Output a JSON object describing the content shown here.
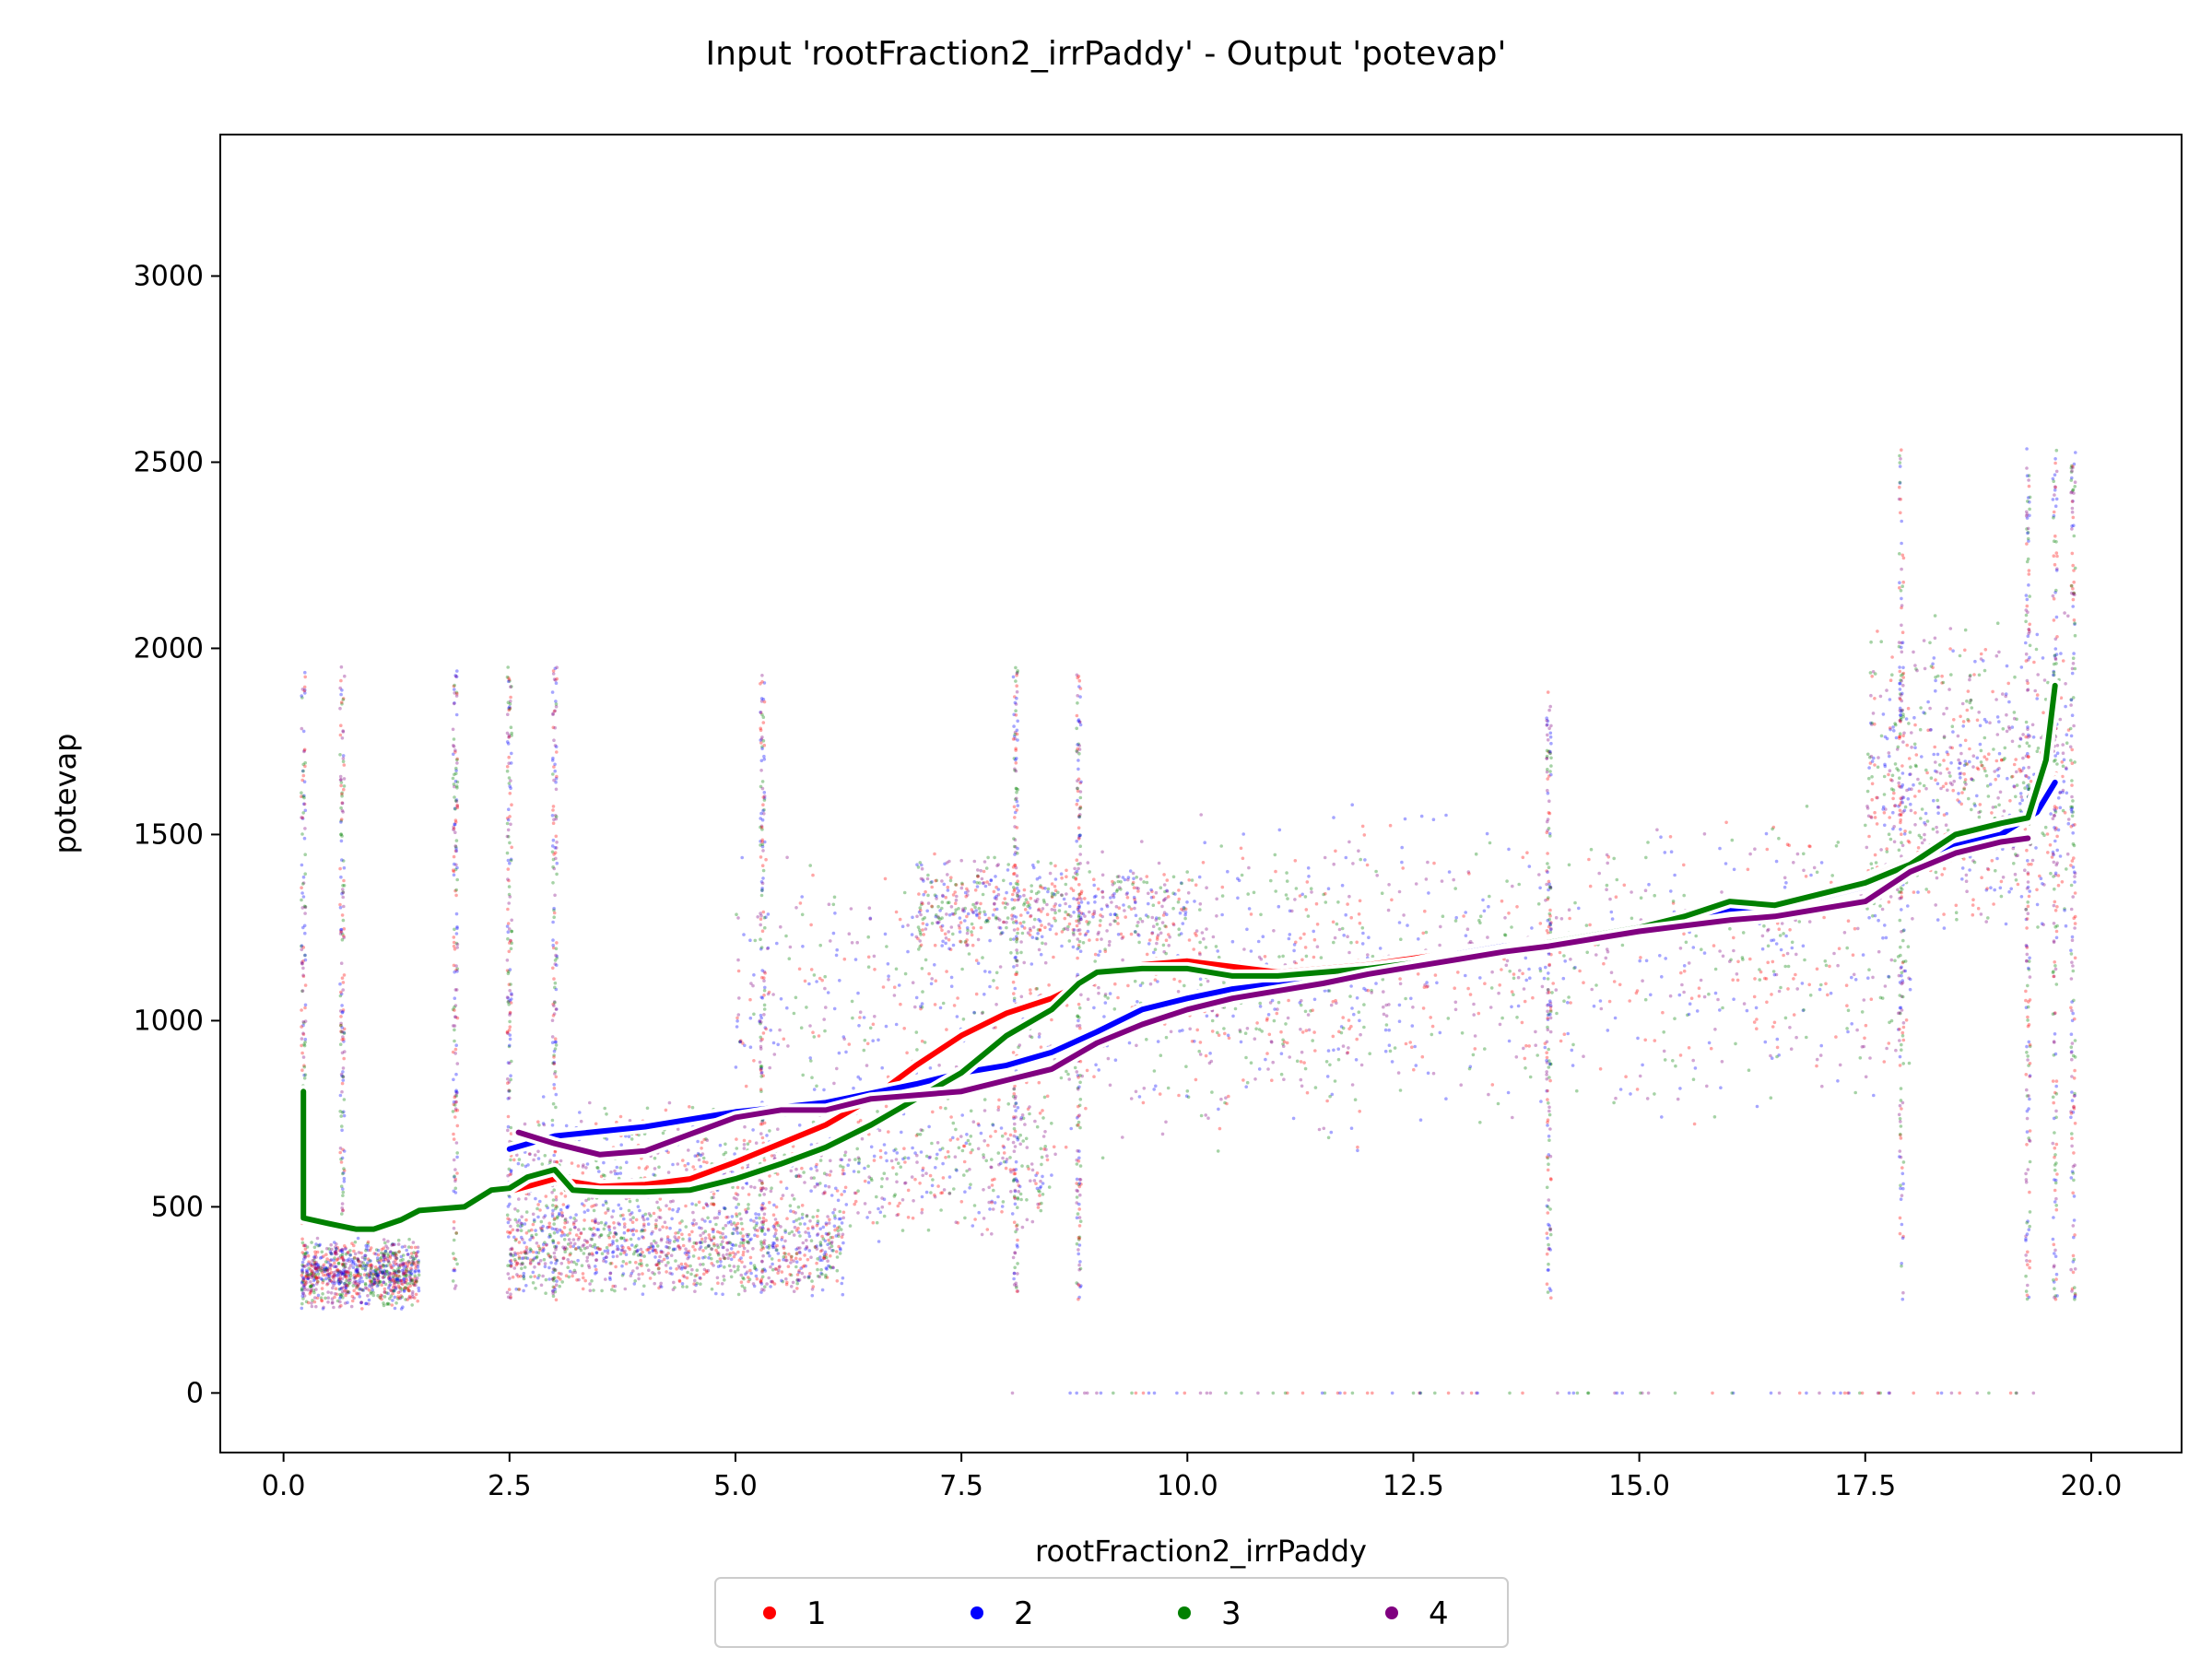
{
  "chart_data": {
    "type": "scatter",
    "title": "Input 'rootFraction2_irrPaddy' - Output 'potevap'",
    "xlabel": "rootFraction2_irrPaddy",
    "ylabel": "potevap",
    "xlim": [
      -0.7,
      21.0
    ],
    "ylim": [
      -160,
      3380
    ],
    "xticks": [
      0.0,
      2.5,
      5.0,
      7.5,
      10.0,
      12.5,
      15.0,
      17.5,
      20.0
    ],
    "xtick_labels": [
      "0.0",
      "2.5",
      "5.0",
      "7.5",
      "10.0",
      "12.5",
      "15.0",
      "17.5",
      "20.0"
    ],
    "yticks": [
      0,
      500,
      1000,
      1500,
      2000,
      2500,
      3000
    ],
    "ytick_labels": [
      "0",
      "500",
      "1000",
      "1500",
      "2000",
      "2500",
      "3000"
    ],
    "grid": false,
    "legend": {
      "position": "bottom-center",
      "columns": 4
    },
    "series": [
      {
        "name": "1",
        "color": "#ff0000",
        "trend": [
          [
            2.55,
            545
          ],
          [
            3.0,
            575
          ],
          [
            3.5,
            555
          ],
          [
            4.0,
            560
          ],
          [
            4.5,
            575
          ],
          [
            5.0,
            620
          ],
          [
            5.5,
            670
          ],
          [
            6.0,
            720
          ],
          [
            6.5,
            790
          ],
          [
            7.0,
            880
          ],
          [
            7.5,
            960
          ],
          [
            8.0,
            1020
          ],
          [
            8.5,
            1060
          ],
          [
            9.0,
            1120
          ],
          [
            9.5,
            1150
          ],
          [
            10.0,
            1160
          ],
          [
            10.5,
            1145
          ],
          [
            11.0,
            1130
          ],
          [
            11.5,
            1140
          ],
          [
            12.0,
            1150
          ],
          [
            13.0,
            1185
          ],
          [
            14.0,
            1215
          ],
          [
            15.0,
            1245
          ],
          [
            16.0,
            1290
          ],
          [
            16.5,
            1300
          ],
          [
            17.0,
            1340
          ],
          [
            17.5,
            1380
          ],
          [
            18.0,
            1430
          ],
          [
            18.5,
            1465
          ],
          [
            19.0,
            1495
          ],
          [
            19.4,
            1560
          ],
          [
            19.6,
            1650
          ]
        ]
      },
      {
        "name": "2",
        "color": "#0000ff",
        "trend": [
          [
            2.5,
            655
          ],
          [
            3.0,
            690
          ],
          [
            4.0,
            715
          ],
          [
            5.0,
            755
          ],
          [
            6.0,
            780
          ],
          [
            7.0,
            830
          ],
          [
            7.5,
            860
          ],
          [
            8.0,
            880
          ],
          [
            8.5,
            915
          ],
          [
            9.0,
            970
          ],
          [
            9.5,
            1030
          ],
          [
            10.0,
            1060
          ],
          [
            10.5,
            1085
          ],
          [
            11.0,
            1100
          ],
          [
            11.5,
            1115
          ],
          [
            12.0,
            1130
          ],
          [
            12.5,
            1155
          ],
          [
            13.0,
            1180
          ],
          [
            13.5,
            1200
          ],
          [
            14.0,
            1215
          ],
          [
            15.0,
            1250
          ],
          [
            15.5,
            1280
          ],
          [
            16.0,
            1300
          ],
          [
            16.5,
            1310
          ],
          [
            17.0,
            1330
          ],
          [
            17.5,
            1360
          ],
          [
            18.0,
            1420
          ],
          [
            18.5,
            1470
          ],
          [
            19.0,
            1500
          ],
          [
            19.4,
            1560
          ],
          [
            19.6,
            1640
          ]
        ]
      },
      {
        "name": "3",
        "color": "#008000",
        "trend": [
          [
            0.22,
            810
          ],
          [
            0.22,
            470
          ],
          [
            0.5,
            455
          ],
          [
            0.8,
            440
          ],
          [
            1.0,
            440
          ],
          [
            1.3,
            465
          ],
          [
            1.5,
            490
          ],
          [
            2.0,
            500
          ],
          [
            2.3,
            545
          ],
          [
            2.5,
            550
          ],
          [
            2.7,
            580
          ],
          [
            3.0,
            600
          ],
          [
            3.2,
            545
          ],
          [
            3.5,
            540
          ],
          [
            4.0,
            540
          ],
          [
            4.5,
            545
          ],
          [
            5.0,
            575
          ],
          [
            5.5,
            615
          ],
          [
            6.0,
            660
          ],
          [
            6.5,
            720
          ],
          [
            7.0,
            790
          ],
          [
            7.5,
            860
          ],
          [
            8.0,
            960
          ],
          [
            8.5,
            1030
          ],
          [
            8.8,
            1100
          ],
          [
            9.0,
            1130
          ],
          [
            9.5,
            1140
          ],
          [
            10.0,
            1140
          ],
          [
            10.5,
            1120
          ],
          [
            11.0,
            1120
          ],
          [
            11.5,
            1130
          ],
          [
            12.0,
            1140
          ],
          [
            13.0,
            1170
          ],
          [
            14.0,
            1210
          ],
          [
            15.0,
            1250
          ],
          [
            15.5,
            1280
          ],
          [
            16.0,
            1320
          ],
          [
            16.5,
            1310
          ],
          [
            17.0,
            1340
          ],
          [
            17.5,
            1370
          ],
          [
            18.0,
            1420
          ],
          [
            18.5,
            1500
          ],
          [
            19.0,
            1530
          ],
          [
            19.3,
            1545
          ],
          [
            19.5,
            1700
          ],
          [
            19.6,
            1900
          ]
        ]
      },
      {
        "name": "4",
        "color": "#800080",
        "trend": [
          [
            2.6,
            700
          ],
          [
            3.0,
            670
          ],
          [
            3.5,
            640
          ],
          [
            4.0,
            650
          ],
          [
            4.5,
            695
          ],
          [
            5.0,
            740
          ],
          [
            5.5,
            760
          ],
          [
            6.0,
            760
          ],
          [
            6.5,
            790
          ],
          [
            7.0,
            800
          ],
          [
            7.5,
            810
          ],
          [
            8.0,
            840
          ],
          [
            8.5,
            870
          ],
          [
            9.0,
            940
          ],
          [
            9.5,
            990
          ],
          [
            10.0,
            1030
          ],
          [
            10.5,
            1060
          ],
          [
            11.0,
            1080
          ],
          [
            11.5,
            1100
          ],
          [
            12.0,
            1125
          ],
          [
            12.5,
            1145
          ],
          [
            13.0,
            1165
          ],
          [
            13.5,
            1185
          ],
          [
            14.0,
            1200
          ],
          [
            14.5,
            1220
          ],
          [
            15.0,
            1240
          ],
          [
            15.5,
            1255
          ],
          [
            16.0,
            1270
          ],
          [
            16.5,
            1280
          ],
          [
            17.0,
            1300
          ],
          [
            17.5,
            1320
          ],
          [
            18.0,
            1400
          ],
          [
            18.5,
            1450
          ],
          [
            19.0,
            1480
          ],
          [
            19.3,
            1490
          ]
        ]
      }
    ],
    "scatter_clusters": [
      {
        "x": [
          0.2,
          1.5
        ],
        "y": [
          220,
          420
        ],
        "weight": 5
      },
      {
        "x": [
          2.5,
          6.2
        ],
        "y": [
          250,
          520
        ],
        "weight": 6
      },
      {
        "x": [
          2.5,
          8.5
        ],
        "y": [
          400,
          800
        ],
        "weight": 5
      },
      {
        "x": [
          7.0,
          10.0
        ],
        "y": [
          1150,
          1450
        ],
        "weight": 3
      },
      {
        "x": [
          5.0,
          12.0
        ],
        "y": [
          600,
          1500
        ],
        "weight": 4
      },
      {
        "x": [
          10.0,
          18.0
        ],
        "y": [
          700,
          1600
        ],
        "weight": 5
      },
      {
        "x": [
          17.5,
          19.8
        ],
        "y": [
          1200,
          2100
        ],
        "weight": 4
      }
    ],
    "vertical_streaks": [
      0.22,
      0.65,
      1.9,
      2.5,
      3.0,
      5.3,
      8.1,
      8.8,
      14.0,
      17.9,
      19.3,
      19.6,
      19.8
    ]
  }
}
